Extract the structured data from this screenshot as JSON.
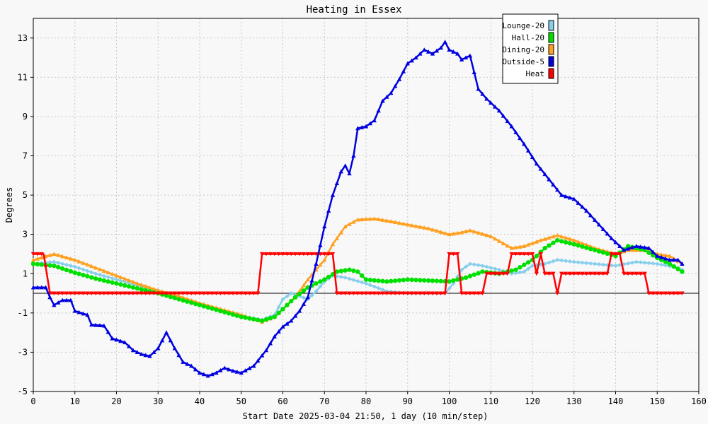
{
  "chart_data": {
    "type": "line",
    "title": "Heating in Essex",
    "xlabel": "Start Date 2025-03-04 21:50, 1 day (10 min/step)",
    "ylabel": "Degrees",
    "xlim": [
      0,
      160
    ],
    "ylim": [
      -5,
      14
    ],
    "xticks": [
      0,
      10,
      20,
      30,
      40,
      50,
      60,
      70,
      80,
      90,
      100,
      110,
      120,
      130,
      140,
      150,
      160
    ],
    "yticks": [
      -5,
      -3,
      -1,
      1,
      3,
      5,
      7,
      9,
      11,
      13
    ],
    "grid": true,
    "legend_position": "top-right",
    "zero_line": true,
    "series": [
      {
        "name": "Lounge-20",
        "color": "#87CEEB",
        "marker": "diamond",
        "points": [
          [
            0,
            1.5
          ],
          [
            5,
            1.6
          ],
          [
            10,
            1.35
          ],
          [
            15,
            1.0
          ],
          [
            20,
            0.7
          ],
          [
            25,
            0.4
          ],
          [
            30,
            0.15
          ],
          [
            35,
            -0.2
          ],
          [
            40,
            -0.55
          ],
          [
            45,
            -0.85
          ],
          [
            50,
            -1.15
          ],
          [
            55,
            -1.35
          ],
          [
            58,
            -1.1
          ],
          [
            60,
            -0.3
          ],
          [
            62,
            0.0
          ],
          [
            64,
            -0.15
          ],
          [
            66,
            -0.3
          ],
          [
            68,
            0.1
          ],
          [
            70,
            0.6
          ],
          [
            72,
            0.9
          ],
          [
            75,
            0.8
          ],
          [
            80,
            0.5
          ],
          [
            85,
            0.1
          ],
          [
            90,
            0.0
          ],
          [
            95,
            0.0
          ],
          [
            99,
            0.0
          ],
          [
            101,
            0.5
          ],
          [
            103,
            1.2
          ],
          [
            105,
            1.5
          ],
          [
            108,
            1.4
          ],
          [
            112,
            1.2
          ],
          [
            115,
            1.0
          ],
          [
            118,
            1.1
          ],
          [
            120,
            1.4
          ],
          [
            123,
            1.5
          ],
          [
            126,
            1.7
          ],
          [
            130,
            1.6
          ],
          [
            135,
            1.5
          ],
          [
            140,
            1.4
          ],
          [
            145,
            1.6
          ],
          [
            150,
            1.5
          ],
          [
            155,
            1.3
          ],
          [
            156,
            1.2
          ]
        ]
      },
      {
        "name": "Hall-20",
        "color": "#00E000",
        "marker": "circle",
        "points": [
          [
            0,
            1.5
          ],
          [
            5,
            1.4
          ],
          [
            10,
            1.05
          ],
          [
            15,
            0.75
          ],
          [
            20,
            0.5
          ],
          [
            25,
            0.25
          ],
          [
            30,
            0.0
          ],
          [
            35,
            -0.3
          ],
          [
            40,
            -0.6
          ],
          [
            45,
            -0.9
          ],
          [
            50,
            -1.2
          ],
          [
            55,
            -1.4
          ],
          [
            58,
            -1.2
          ],
          [
            60,
            -0.8
          ],
          [
            63,
            -0.2
          ],
          [
            66,
            0.3
          ],
          [
            70,
            0.7
          ],
          [
            73,
            1.1
          ],
          [
            76,
            1.2
          ],
          [
            78,
            1.1
          ],
          [
            80,
            0.7
          ],
          [
            85,
            0.6
          ],
          [
            90,
            0.7
          ],
          [
            95,
            0.65
          ],
          [
            100,
            0.6
          ],
          [
            104,
            0.8
          ],
          [
            108,
            1.1
          ],
          [
            112,
            1.0
          ],
          [
            116,
            1.2
          ],
          [
            120,
            1.7
          ],
          [
            123,
            2.3
          ],
          [
            126,
            2.7
          ],
          [
            130,
            2.5
          ],
          [
            135,
            2.2
          ],
          [
            140,
            1.9
          ],
          [
            143,
            2.4
          ],
          [
            147,
            2.2
          ],
          [
            150,
            1.8
          ],
          [
            153,
            1.5
          ],
          [
            156,
            1.1
          ]
        ]
      },
      {
        "name": "Dining-20",
        "color": "#FFA020",
        "marker": "triangle",
        "points": [
          [
            0,
            1.7
          ],
          [
            5,
            2.0
          ],
          [
            10,
            1.7
          ],
          [
            15,
            1.3
          ],
          [
            20,
            0.9
          ],
          [
            25,
            0.5
          ],
          [
            30,
            0.15
          ],
          [
            35,
            -0.15
          ],
          [
            40,
            -0.5
          ],
          [
            45,
            -0.8
          ],
          [
            50,
            -1.1
          ],
          [
            55,
            -1.45
          ],
          [
            58,
            -1.2
          ],
          [
            60,
            -0.8
          ],
          [
            63,
            -0.2
          ],
          [
            66,
            0.7
          ],
          [
            70,
            1.7
          ],
          [
            72,
            2.5
          ],
          [
            75,
            3.4
          ],
          [
            78,
            3.75
          ],
          [
            82,
            3.8
          ],
          [
            85,
            3.7
          ],
          [
            90,
            3.5
          ],
          [
            95,
            3.3
          ],
          [
            100,
            3.0
          ],
          [
            103,
            3.1
          ],
          [
            105,
            3.2
          ],
          [
            110,
            2.9
          ],
          [
            115,
            2.3
          ],
          [
            118,
            2.4
          ],
          [
            122,
            2.7
          ],
          [
            126,
            2.95
          ],
          [
            130,
            2.7
          ],
          [
            135,
            2.3
          ],
          [
            140,
            2.0
          ],
          [
            143,
            2.2
          ],
          [
            147,
            2.2
          ],
          [
            150,
            2.0
          ],
          [
            153,
            1.9
          ],
          [
            156,
            1.5
          ]
        ]
      },
      {
        "name": "Outside-5",
        "color": "#0000E0",
        "marker": "triangle",
        "points": [
          [
            0,
            0.3
          ],
          [
            3,
            0.3
          ],
          [
            4,
            -0.2
          ],
          [
            5,
            -0.6
          ],
          [
            7,
            -0.35
          ],
          [
            9,
            -0.35
          ],
          [
            10,
            -0.9
          ],
          [
            13,
            -1.1
          ],
          [
            14,
            -1.6
          ],
          [
            17,
            -1.65
          ],
          [
            19,
            -2.3
          ],
          [
            22,
            -2.5
          ],
          [
            24,
            -2.9
          ],
          [
            26,
            -3.1
          ],
          [
            28,
            -3.2
          ],
          [
            30,
            -2.8
          ],
          [
            32,
            -2.0
          ],
          [
            34,
            -2.8
          ],
          [
            36,
            -3.5
          ],
          [
            38,
            -3.7
          ],
          [
            40,
            -4.05
          ],
          [
            42,
            -4.2
          ],
          [
            44,
            -4.05
          ],
          [
            46,
            -3.8
          ],
          [
            48,
            -3.95
          ],
          [
            50,
            -4.05
          ],
          [
            53,
            -3.7
          ],
          [
            56,
            -2.9
          ],
          [
            58,
            -2.2
          ],
          [
            60,
            -1.7
          ],
          [
            62,
            -1.4
          ],
          [
            64,
            -0.9
          ],
          [
            66,
            -0.2
          ],
          [
            68,
            1.5
          ],
          [
            70,
            3.4
          ],
          [
            72,
            5.0
          ],
          [
            74,
            6.2
          ],
          [
            75,
            6.5
          ],
          [
            76,
            6.1
          ],
          [
            77,
            7.0
          ],
          [
            78,
            8.4
          ],
          [
            80,
            8.5
          ],
          [
            82,
            8.8
          ],
          [
            84,
            9.8
          ],
          [
            86,
            10.2
          ],
          [
            88,
            10.9
          ],
          [
            90,
            11.7
          ],
          [
            92,
            12.0
          ],
          [
            94,
            12.4
          ],
          [
            96,
            12.2
          ],
          [
            98,
            12.5
          ],
          [
            99,
            12.8
          ],
          [
            100,
            12.4
          ],
          [
            102,
            12.2
          ],
          [
            103,
            11.9
          ],
          [
            105,
            12.1
          ],
          [
            107,
            10.4
          ],
          [
            109,
            9.9
          ],
          [
            112,
            9.3
          ],
          [
            115,
            8.5
          ],
          [
            118,
            7.6
          ],
          [
            121,
            6.6
          ],
          [
            124,
            5.8
          ],
          [
            127,
            5.0
          ],
          [
            130,
            4.8
          ],
          [
            133,
            4.2
          ],
          [
            136,
            3.5
          ],
          [
            139,
            2.8
          ],
          [
            142,
            2.2
          ],
          [
            145,
            2.4
          ],
          [
            148,
            2.3
          ],
          [
            150,
            1.9
          ],
          [
            153,
            1.7
          ],
          [
            155,
            1.7
          ],
          [
            156,
            1.5
          ]
        ]
      },
      {
        "name": "Heat",
        "color": "#FF0000",
        "marker": "triangle-down",
        "points": [
          [
            0,
            2.0
          ],
          [
            2.5,
            2.0
          ],
          [
            4,
            0.0
          ],
          [
            54,
            0.0
          ],
          [
            55,
            2.0
          ],
          [
            72,
            2.0
          ],
          [
            73,
            0.0
          ],
          [
            99,
            0.0
          ],
          [
            100,
            2.0
          ],
          [
            102,
            2.0
          ],
          [
            103,
            0.0
          ],
          [
            108,
            0.0
          ],
          [
            109,
            1.0
          ],
          [
            114,
            1.0
          ],
          [
            115,
            2.0
          ],
          [
            120,
            2.0
          ],
          [
            121,
            1.0
          ],
          [
            122,
            2.0
          ],
          [
            123,
            1.0
          ],
          [
            125,
            1.0
          ],
          [
            126,
            0.0
          ],
          [
            127,
            1.0
          ],
          [
            138,
            1.0
          ],
          [
            139,
            2.0
          ],
          [
            141,
            2.0
          ],
          [
            142,
            1.0
          ],
          [
            147,
            1.0
          ],
          [
            148,
            0.0
          ],
          [
            156,
            0.0
          ]
        ]
      }
    ]
  }
}
